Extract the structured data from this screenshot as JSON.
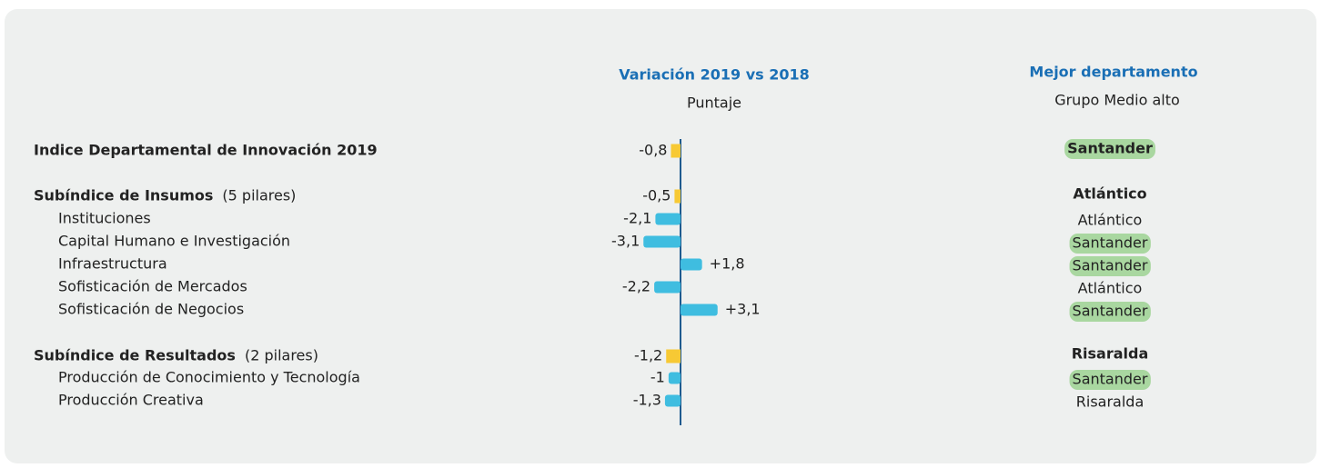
{
  "chart_data": {
    "type": "bar",
    "orientation": "horizontal",
    "column_title": "Variación  2019 vs 2018",
    "column_subtitle": "Puntaje",
    "best_title": "Mejor departamento",
    "best_subtitle": "Grupo  Medio alto",
    "categories": [
      "Indice Departamental de Innovación 2019",
      "Subíndice de Insumos",
      "Instituciones",
      "Capital Humano e Investigación",
      "Infraestructura",
      "Sofisticación de Mercados",
      "Sofisticación de Negocios",
      "Subíndice de Resultados",
      "Producción de Conocimiento y Tecnología",
      "Producción Creativa"
    ],
    "notes": [
      null,
      "(5 pilares)",
      null,
      null,
      null,
      null,
      null,
      "(2 pilares)",
      null,
      null
    ],
    "bold": [
      true,
      true,
      false,
      false,
      false,
      false,
      false,
      true,
      false,
      false
    ],
    "values": [
      -0.8,
      -0.5,
      -2.1,
      -3.1,
      1.8,
      -2.2,
      3.1,
      -1.2,
      -1,
      -1.3
    ],
    "value_labels": [
      "-0,8",
      "-0,5",
      "-2,1",
      "-3,1",
      "+1,8",
      "-2,2",
      "+3,1",
      "-1,2",
      "-1",
      "-1,3"
    ],
    "colors": [
      "#f7c934",
      "#f7c934",
      "#3fbde0",
      "#3fbde0",
      "#3fbde0",
      "#3fbde0",
      "#3fbde0",
      "#f7c934",
      "#3fbde0",
      "#3fbde0"
    ],
    "best": [
      "Santander",
      "Atlántico",
      "Atlántico",
      "Santander",
      "Santander",
      "Atlántico",
      "Santander",
      "Risaralda",
      "Santander",
      "Risaralda"
    ],
    "best_highlight": [
      true,
      false,
      false,
      true,
      true,
      false,
      true,
      false,
      true,
      false
    ],
    "highlight_color": "#a9d7a0",
    "axis_color": "#1f5b8f",
    "xlim": [
      -3.5,
      3.5
    ]
  }
}
